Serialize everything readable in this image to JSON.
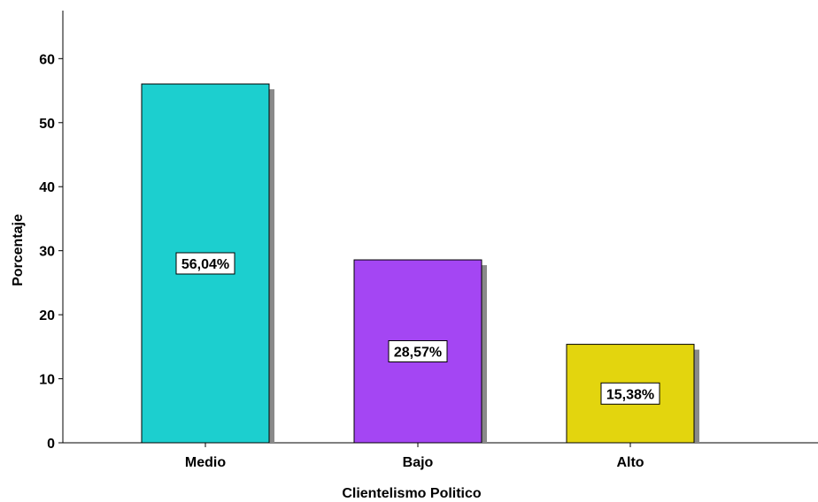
{
  "chart_data": {
    "type": "bar",
    "title": "",
    "xlabel": "Clientelismo Politico",
    "ylabel": "Porcentaje",
    "categories": [
      "Medio",
      "Bajo",
      "Alto"
    ],
    "values": [
      56.04,
      28.57,
      15.38
    ],
    "data_labels": [
      "56,04%",
      "28,57%",
      "15,38%"
    ],
    "colors": [
      "#1ccfcf",
      "#a446f3",
      "#e3d50e"
    ],
    "ylim": [
      0,
      67.5
    ],
    "yticks": [
      "0",
      "10",
      "20",
      "30",
      "40",
      "50",
      "60"
    ],
    "grid": false,
    "legend": "none"
  }
}
